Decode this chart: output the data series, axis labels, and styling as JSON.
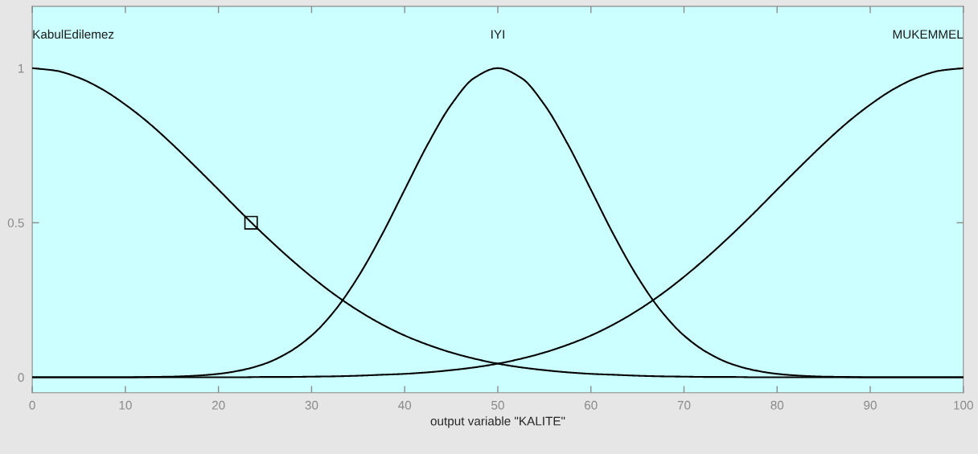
{
  "chart_data": {
    "type": "line",
    "xlabel": "output variable \"KALITE\"",
    "x": [
      0,
      2.5,
      5,
      7.5,
      10,
      12.5,
      15,
      17.5,
      20,
      22.5,
      25,
      27.5,
      30,
      32.5,
      35,
      37.5,
      40,
      42.5,
      45,
      47.5,
      50,
      52.5,
      55,
      57.5,
      60,
      62.5,
      65,
      67.5,
      70,
      72.5,
      75,
      77.5,
      80,
      82.5,
      85,
      87.5,
      90,
      92.5,
      95,
      97.5,
      100
    ],
    "xlim": [
      0,
      100
    ],
    "xticks": [
      0,
      10,
      20,
      30,
      40,
      50,
      60,
      70,
      80,
      90,
      100
    ],
    "ylim": [
      -0.05,
      1.2
    ],
    "yticks": [
      0,
      0.5,
      1
    ],
    "series": [
      {
        "name": "KabulEdilemez",
        "color": "#000000",
        "values": [
          1,
          0.992,
          0.969,
          0.932,
          0.882,
          0.823,
          0.755,
          0.682,
          0.607,
          0.531,
          0.458,
          0.389,
          0.325,
          0.267,
          0.216,
          0.172,
          0.135,
          0.105,
          0.08,
          0.06,
          0.044,
          0.032,
          0.023,
          0.016,
          0.011,
          0.008,
          0.005,
          0.003,
          0.002,
          0.001,
          0.001,
          0,
          0,
          0,
          0,
          0,
          0,
          0,
          0,
          0,
          0
        ]
      },
      {
        "name": "IYI",
        "color": "#000000",
        "values": [
          0,
          0,
          0,
          0,
          0,
          0.001,
          0.002,
          0.005,
          0.011,
          0.023,
          0.044,
          0.08,
          0.135,
          0.216,
          0.325,
          0.458,
          0.607,
          0.755,
          0.882,
          0.969,
          1,
          0.969,
          0.882,
          0.755,
          0.607,
          0.458,
          0.325,
          0.216,
          0.135,
          0.08,
          0.044,
          0.023,
          0.011,
          0.005,
          0.002,
          0.001,
          0,
          0,
          0,
          0,
          0
        ]
      },
      {
        "name": "MUKEMMEL",
        "color": "#000000",
        "values": [
          0,
          0,
          0,
          0,
          0,
          0,
          0,
          0,
          0,
          0,
          0.001,
          0.001,
          0.002,
          0.003,
          0.005,
          0.008,
          0.011,
          0.016,
          0.023,
          0.032,
          0.044,
          0.06,
          0.08,
          0.105,
          0.135,
          0.172,
          0.216,
          0.267,
          0.325,
          0.389,
          0.458,
          0.531,
          0.607,
          0.682,
          0.755,
          0.823,
          0.882,
          0.932,
          0.969,
          0.992,
          1
        ]
      },
      {
        "type": "scatter",
        "x": [
          23.5
        ],
        "values": [
          0.5
        ],
        "color": "#000000",
        "marker": "square"
      }
    ]
  }
}
